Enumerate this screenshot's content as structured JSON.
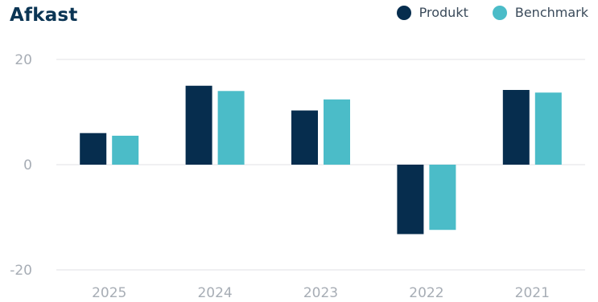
{
  "header": {
    "title": "Afkast"
  },
  "colors": {
    "produkt": "#062d4e",
    "benchmark": "#4bbcc8",
    "grid": "#e6e8ea"
  },
  "chart_data": {
    "type": "bar",
    "title": "Afkast",
    "categories": [
      "2025",
      "2024",
      "2023",
      "2022",
      "2021"
    ],
    "series": [
      {
        "name": "Produkt",
        "values": [
          6.0,
          15.0,
          10.3,
          -13.2,
          14.2
        ]
      },
      {
        "name": "Benchmark",
        "values": [
          5.5,
          14.0,
          12.4,
          -12.4,
          13.7
        ]
      }
    ],
    "yticks": [
      20,
      0,
      -20
    ],
    "ytick_labels": [
      "20",
      "0",
      "-20"
    ],
    "ylim": [
      -20,
      20
    ],
    "grid": true,
    "legend_position": "top-right"
  }
}
